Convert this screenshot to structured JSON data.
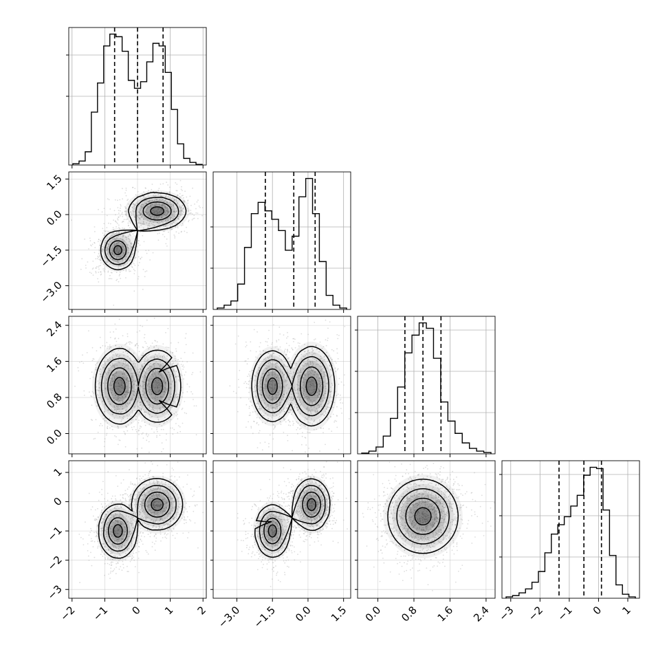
{
  "chart_data": {
    "type": "corner",
    "colors": {
      "axes": "#000000",
      "grid": "#b0b0b0",
      "scatter": "#9a9a9a",
      "contour": "#000000",
      "hist": "#000000",
      "background": "#ffffff"
    },
    "grid": true,
    "variables": [
      {
        "range": [
          -2.1,
          2.1
        ],
        "ticks": [
          -2,
          -1,
          0,
          1,
          2
        ],
        "tick_labels": [
          "-2",
          "-1",
          "0",
          "1",
          "2"
        ],
        "hist_grid_fracs": [
          0.5,
          0.8
        ],
        "quantiles": [
          -0.7,
          0.0,
          0.78
        ],
        "hist": [
          0.01,
          0.03,
          0.1,
          0.4,
          0.62,
          0.9,
          0.99,
          0.97,
          0.86,
          0.64,
          0.58,
          0.63,
          0.78,
          0.92,
          0.9,
          0.7,
          0.42,
          0.16,
          0.05,
          0.02,
          0.005
        ]
      },
      {
        "range": [
          -4.0,
          1.8
        ],
        "ticks": [
          -3.0,
          -1.5,
          0.0,
          1.5
        ],
        "tick_labels": [
          "-3.0",
          "-1.5",
          "0.0",
          "1.5"
        ],
        "hist_grid_fracs": [
          0.3,
          0.6
        ],
        "quantiles": [
          -1.8,
          -0.6,
          0.3
        ],
        "hist": [
          0.01,
          0.03,
          0.06,
          0.18,
          0.44,
          0.68,
          0.76,
          0.7,
          0.64,
          0.56,
          0.42,
          0.52,
          0.8,
          0.93,
          0.68,
          0.34,
          0.1,
          0.03,
          0.01
        ]
      },
      {
        "range": [
          -0.45,
          2.6
        ],
        "ticks": [
          0.0,
          0.8,
          1.6,
          2.4
        ],
        "tick_labels": [
          "0.0",
          "0.8",
          "1.6",
          "2.4"
        ],
        "hist_grid_fracs": [
          0.3,
          0.6,
          0.9
        ],
        "quantiles": [
          0.6,
          1.0,
          1.4
        ],
        "hist": [
          0.005,
          0.02,
          0.05,
          0.13,
          0.26,
          0.49,
          0.74,
          0.87,
          0.96,
          0.92,
          0.7,
          0.38,
          0.24,
          0.15,
          0.08,
          0.04,
          0.02,
          0.01
        ]
      },
      {
        "range": [
          -3.3,
          1.4
        ],
        "ticks": [
          -3,
          -2,
          -1,
          0,
          1
        ],
        "tick_labels": [
          "-3",
          "-2",
          "-1",
          "0",
          "1"
        ],
        "hist_grid_fracs": [
          0.3,
          0.6,
          0.9
        ],
        "quantiles": [
          -1.35,
          -0.5,
          0.1
        ],
        "hist": [
          0.01,
          0.02,
          0.04,
          0.07,
          0.12,
          0.2,
          0.34,
          0.48,
          0.55,
          0.61,
          0.69,
          0.77,
          0.92,
          0.98,
          0.97,
          0.66,
          0.32,
          0.1,
          0.03,
          0.01
        ]
      }
    ],
    "joint": {
      "1-0": {
        "modes": [
          [
            -0.6,
            -1.5,
            0.32,
            0.5,
            0.7
          ],
          [
            0.6,
            0.15,
            0.45,
            0.4,
            1.0
          ]
        ],
        "n": 1400
      },
      "2-0": {
        "modes": [
          [
            -0.55,
            1.05,
            0.4,
            0.45,
            0.9
          ],
          [
            0.6,
            1.05,
            0.4,
            0.45,
            0.85
          ]
        ],
        "n": 1400
      },
      "2-1": {
        "modes": [
          [
            -1.5,
            1.05,
            0.5,
            0.45,
            0.8
          ],
          [
            0.15,
            1.05,
            0.5,
            0.45,
            1.0
          ]
        ],
        "n": 1400
      },
      "3-0": {
        "modes": [
          [
            -0.6,
            -1.0,
            0.35,
            0.55,
            0.75
          ],
          [
            0.6,
            -0.1,
            0.4,
            0.45,
            1.0
          ]
        ],
        "n": 1400
      },
      "3-1": {
        "modes": [
          [
            -1.5,
            -1.0,
            0.45,
            0.55,
            0.7
          ],
          [
            0.15,
            -0.1,
            0.4,
            0.45,
            1.0
          ]
        ],
        "n": 1400
      },
      "3-2": {
        "modes": [
          [
            1.0,
            -0.5,
            0.4,
            0.65,
            1.0
          ]
        ],
        "n": 1400
      }
    }
  }
}
